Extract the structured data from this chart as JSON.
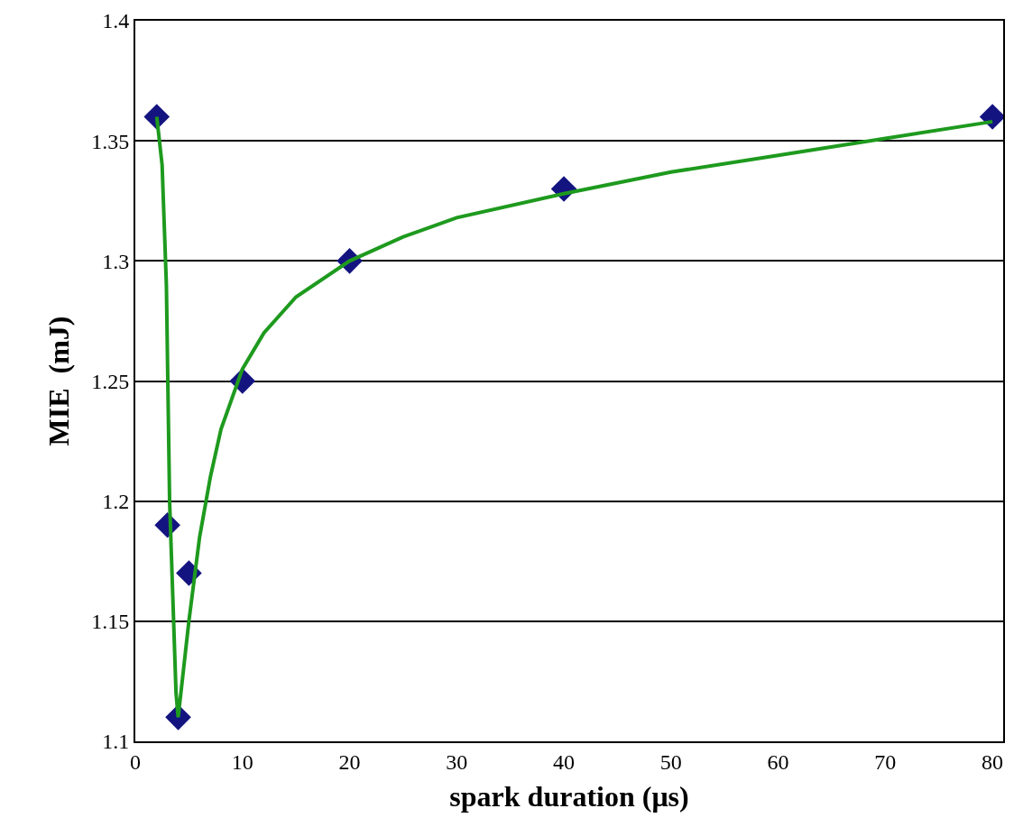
{
  "chart_data": {
    "type": "scatter",
    "xlabel": "spark duration (μs)",
    "ylabel": "MIE  (mJ)",
    "xlim": [
      0,
      81
    ],
    "xticks": [
      0,
      10,
      20,
      30,
      40,
      50,
      60,
      70,
      80
    ],
    "ylim": [
      1.1,
      1.4
    ],
    "yticks": [
      1.1,
      1.15,
      1.2,
      1.25,
      1.3,
      1.35,
      1.4
    ],
    "grid": "y",
    "legend": false,
    "series": [
      {
        "color": "#141480",
        "marker": "diamond",
        "x": [
          2,
          3,
          4,
          5,
          10,
          20,
          40,
          80
        ],
        "values": [
          1.36,
          1.19,
          1.11,
          1.17,
          1.25,
          1.3,
          1.33,
          1.36
        ]
      },
      {
        "type": "line",
        "color": "#1e9a1e",
        "marker": "none",
        "line_style": "solid",
        "x": [
          2,
          2.5,
          2.9,
          3.2,
          3.5,
          3.8,
          4,
          4.5,
          5,
          6,
          7,
          8,
          10,
          12,
          15,
          20,
          25,
          30,
          40,
          50,
          60,
          70,
          80
        ],
        "values": [
          1.36,
          1.34,
          1.29,
          1.2,
          1.16,
          1.12,
          1.11,
          1.13,
          1.15,
          1.185,
          1.21,
          1.23,
          1.255,
          1.27,
          1.285,
          1.3,
          1.31,
          1.318,
          1.328,
          1.337,
          1.344,
          1.351,
          1.358
        ]
      }
    ]
  }
}
